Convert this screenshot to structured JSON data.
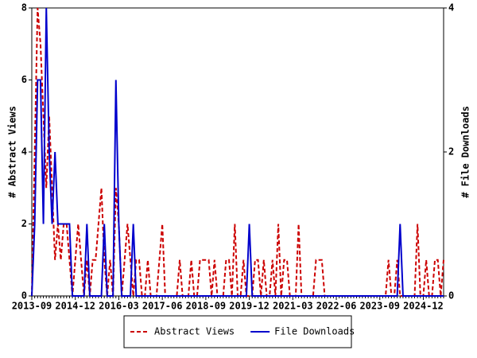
{
  "chart_data": {
    "type": "line",
    "categories": [
      "2013-09",
      null,
      null,
      null,
      null,
      null,
      null,
      null,
      null,
      null,
      null,
      null,
      null,
      null,
      null,
      "2014-12",
      null,
      null,
      null,
      null,
      null,
      null,
      null,
      null,
      null,
      null,
      null,
      null,
      null,
      null,
      "2016-03",
      null,
      null,
      null,
      null,
      null,
      null,
      null,
      null,
      null,
      null,
      null,
      null,
      null,
      null,
      "2017-06",
      null,
      null,
      null,
      null,
      null,
      null,
      null,
      null,
      null,
      null,
      null,
      null,
      null,
      null,
      "2018-09",
      null,
      null,
      null,
      null,
      null,
      null,
      null,
      null,
      null,
      null,
      null,
      null,
      null,
      null,
      "2019-12",
      null,
      null,
      null,
      null,
      null,
      null,
      null,
      null,
      null,
      null,
      null,
      null,
      null,
      null,
      "2021-03",
      null,
      null,
      null,
      null,
      null,
      null,
      null,
      null,
      null,
      null,
      null,
      null,
      null,
      null,
      "2022-06",
      null,
      null,
      null,
      null,
      null,
      null,
      null,
      null,
      null,
      null,
      null,
      null,
      null,
      null,
      "2023-09",
      null,
      null,
      null,
      null,
      null,
      null,
      null,
      null,
      null,
      null,
      null,
      null,
      null,
      null,
      "2024-12",
      null,
      null,
      null,
      null,
      null,
      null,
      null
    ],
    "series": [
      {
        "name": "Abstract Views",
        "color": "#cc0000",
        "dashed": true,
        "values": [
          0,
          4,
          8,
          7,
          5,
          3,
          5,
          3,
          1,
          2,
          1,
          2,
          2,
          1,
          0,
          1,
          2,
          1,
          0,
          1,
          0,
          1,
          1,
          2,
          3,
          1,
          0,
          1,
          0,
          3,
          2,
          0,
          1,
          2,
          1,
          0,
          1,
          1,
          0,
          0,
          1,
          0,
          0,
          0,
          1,
          2,
          0,
          0,
          0,
          0,
          0,
          1,
          0,
          0,
          0,
          1,
          0,
          0,
          1,
          1,
          1,
          1,
          0,
          1,
          0,
          0,
          0,
          1,
          1,
          0,
          2,
          0,
          0,
          1,
          0,
          0,
          0,
          1,
          1,
          0,
          1,
          0,
          0,
          1,
          0,
          2,
          0,
          1,
          1,
          0,
          0,
          0,
          2,
          0,
          0,
          0,
          0,
          0,
          1,
          1,
          1,
          0,
          0,
          0,
          0,
          0,
          0,
          0,
          0,
          0,
          0,
          0,
          0,
          0,
          0,
          0,
          0,
          0,
          0,
          0,
          0,
          0,
          0,
          1,
          0,
          0,
          1,
          0,
          0,
          0,
          0,
          0,
          0,
          2,
          0,
          0,
          1,
          0,
          0,
          1,
          1,
          0,
          1
        ]
      },
      {
        "name": "File Downloads",
        "color": "#0000cc",
        "dashed": false,
        "axis": "y2",
        "values": [
          0,
          1,
          3,
          3,
          1,
          4,
          2,
          1,
          2,
          1,
          1,
          1,
          1,
          1,
          0,
          0,
          0,
          0,
          0,
          1,
          0,
          0,
          0,
          0,
          0,
          1,
          0,
          0,
          0,
          3,
          1,
          0,
          0,
          0,
          0,
          1,
          0,
          0,
          0,
          0,
          0,
          0,
          0,
          0,
          0,
          0,
          0,
          0,
          0,
          0,
          0,
          0,
          0,
          0,
          0,
          0,
          0,
          0,
          0,
          0,
          0,
          0,
          0,
          0,
          0,
          0,
          0,
          0,
          0,
          0,
          0,
          0,
          0,
          0,
          0,
          1,
          0,
          0,
          0,
          0,
          0,
          0,
          0,
          0,
          0,
          0,
          0,
          0,
          0,
          0,
          0,
          0,
          0,
          0,
          0,
          0,
          0,
          0,
          0,
          0,
          0,
          0,
          0,
          0,
          0,
          0,
          0,
          0,
          0,
          0,
          0,
          0,
          0,
          0,
          0,
          0,
          0,
          0,
          0,
          0,
          0,
          0,
          0,
          0,
          0,
          0,
          0,
          1,
          0,
          0,
          0,
          0,
          0,
          0,
          0,
          0,
          0,
          0,
          0,
          0,
          0,
          0,
          0
        ]
      }
    ],
    "y_label": "# Abstract Views",
    "y2_label": "# File Downloads",
    "ylim": [
      0,
      8
    ],
    "yticks": [
      0,
      2,
      4,
      6,
      8
    ],
    "y2lim": [
      0,
      4
    ],
    "y2ticks": [
      0,
      2,
      4
    ],
    "legend": "bottom"
  }
}
